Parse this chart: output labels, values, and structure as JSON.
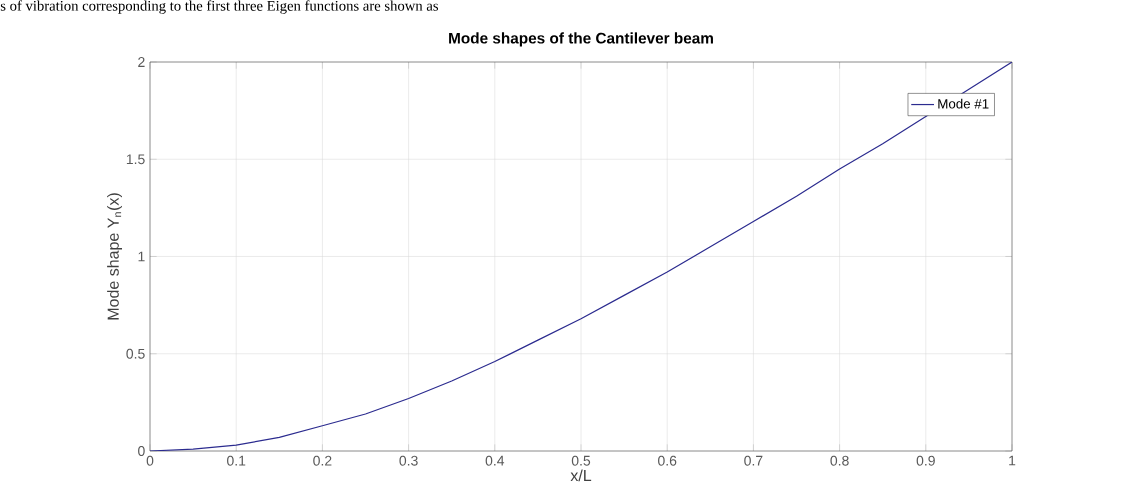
{
  "chart_data": {
    "type": "line",
    "title": "Mode shapes of the Cantilever beam",
    "xlabel": "x/L",
    "ylabel": "Mode shape Y$_{n}$(x)",
    "annotations": [
      "s of vibration corresponding to the first three Eigen functions are shown as"
    ],
    "x": [
      0,
      0.05,
      0.1,
      0.15,
      0.2,
      0.25,
      0.3,
      0.35,
      0.4,
      0.45,
      0.5,
      0.55,
      0.6,
      0.65,
      0.7,
      0.75,
      0.8,
      0.85,
      0.9,
      0.95,
      1
    ],
    "series": [
      {
        "name": "Mode #1",
        "color": "#2b2b8f",
        "values": [
          0,
          0.01,
          0.03,
          0.07,
          0.13,
          0.19,
          0.27,
          0.36,
          0.46,
          0.57,
          0.68,
          0.8,
          0.92,
          1.05,
          1.18,
          1.31,
          1.45,
          1.58,
          1.72,
          1.86,
          2.0
        ]
      }
    ],
    "xlim": [
      0,
      1
    ],
    "ylim": [
      0,
      2
    ],
    "xticks": [
      0,
      0.1,
      0.2,
      0.3,
      0.4,
      0.5,
      0.6,
      0.7,
      0.8,
      0.9,
      1
    ],
    "yticks": [
      0,
      0.5,
      1,
      1.5,
      2
    ],
    "grid": true,
    "legend": "top right",
    "marker": "none",
    "line_style": "solid"
  }
}
